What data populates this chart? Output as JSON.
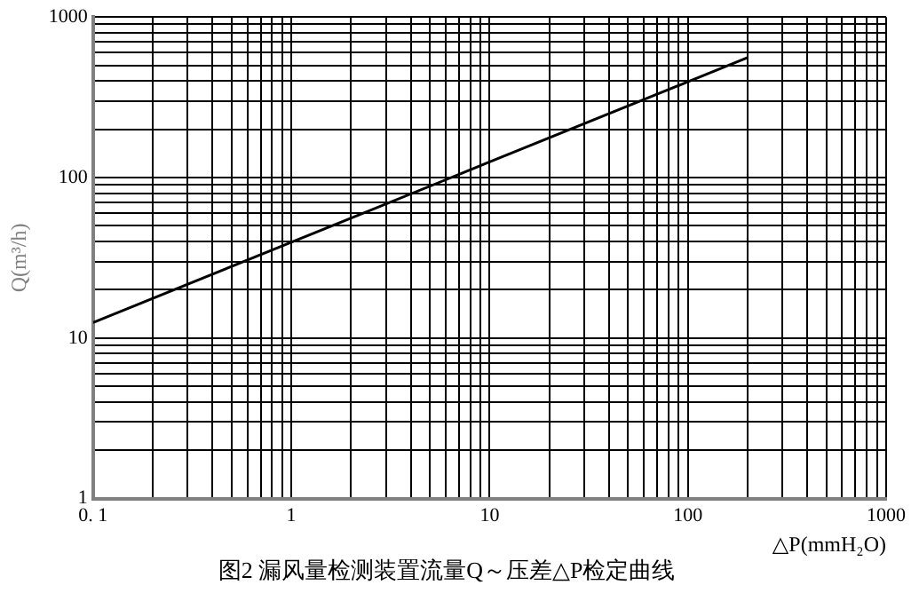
{
  "chart_data": {
    "type": "line",
    "title": "图2 漏风量检测装置流量Q～压差△P检定曲线",
    "xlabel": "△P(mmH₂O)",
    "ylabel": "Q(m³/h)",
    "log": "xy",
    "grid": true,
    "marker": "none",
    "line_style": "solid",
    "x": [
      0.1,
      1,
      10,
      100,
      200
    ],
    "series": [
      {
        "color": "#000000",
        "values": [
          12.5,
          39.5,
          125,
          395,
          559
        ]
      }
    ],
    "xlim": [
      0.1,
      1000
    ],
    "ylim": [
      1,
      1000
    ],
    "xticks": [
      {
        "value": 0.1,
        "label": "0. 1"
      },
      {
        "value": 0.2,
        "label": null
      },
      {
        "value": 0.3,
        "label": null
      },
      {
        "value": 0.4,
        "label": null
      },
      {
        "value": 0.5,
        "label": null
      },
      {
        "value": 0.6,
        "label": null
      },
      {
        "value": 0.7,
        "label": null
      },
      {
        "value": 0.8,
        "label": null
      },
      {
        "value": 0.9,
        "label": null
      },
      1,
      {
        "value": 2,
        "label": null
      },
      {
        "value": 3,
        "label": null
      },
      {
        "value": 4,
        "label": null
      },
      {
        "value": 5,
        "label": null
      },
      {
        "value": 6,
        "label": null
      },
      {
        "value": 7,
        "label": null
      },
      {
        "value": 8,
        "label": null
      },
      {
        "value": 9,
        "label": null
      },
      10,
      {
        "value": 20,
        "label": null
      },
      {
        "value": 30,
        "label": null
      },
      {
        "value": 40,
        "label": null
      },
      {
        "value": 50,
        "label": null
      },
      {
        "value": 60,
        "label": null
      },
      {
        "value": 70,
        "label": null
      },
      {
        "value": 80,
        "label": null
      },
      {
        "value": 90,
        "label": null
      },
      100,
      {
        "value": 200,
        "label": null
      },
      {
        "value": 300,
        "label": null
      },
      {
        "value": 400,
        "label": null
      },
      {
        "value": 500,
        "label": null
      },
      {
        "value": 600,
        "label": null
      },
      {
        "value": 700,
        "label": null
      },
      {
        "value": 800,
        "label": null
      },
      {
        "value": 900,
        "label": null
      },
      1000
    ],
    "yticks": [
      1,
      {
        "value": 2,
        "label": null
      },
      {
        "value": 3,
        "label": null
      },
      {
        "value": 4,
        "label": null
      },
      {
        "value": 5,
        "label": null
      },
      {
        "value": 6,
        "label": null
      },
      {
        "value": 7,
        "label": null
      },
      {
        "value": 8,
        "label": null
      },
      {
        "value": 9,
        "label": null
      },
      10,
      {
        "value": 20,
        "label": null
      },
      {
        "value": 30,
        "label": null
      },
      {
        "value": 40,
        "label": null
      },
      {
        "value": 50,
        "label": null
      },
      {
        "value": 60,
        "label": null
      },
      {
        "value": 70,
        "label": null
      },
      {
        "value": 80,
        "label": null
      },
      {
        "value": 90,
        "label": null
      },
      100,
      {
        "value": 200,
        "label": null
      },
      {
        "value": 300,
        "label": null
      },
      {
        "value": 400,
        "label": null
      },
      {
        "value": 500,
        "label": null
      },
      {
        "value": 600,
        "label": null
      },
      {
        "value": 700,
        "label": null
      },
      {
        "value": 800,
        "label": null
      },
      {
        "value": 900,
        "label": null
      },
      1000
    ],
    "legend": false
  }
}
